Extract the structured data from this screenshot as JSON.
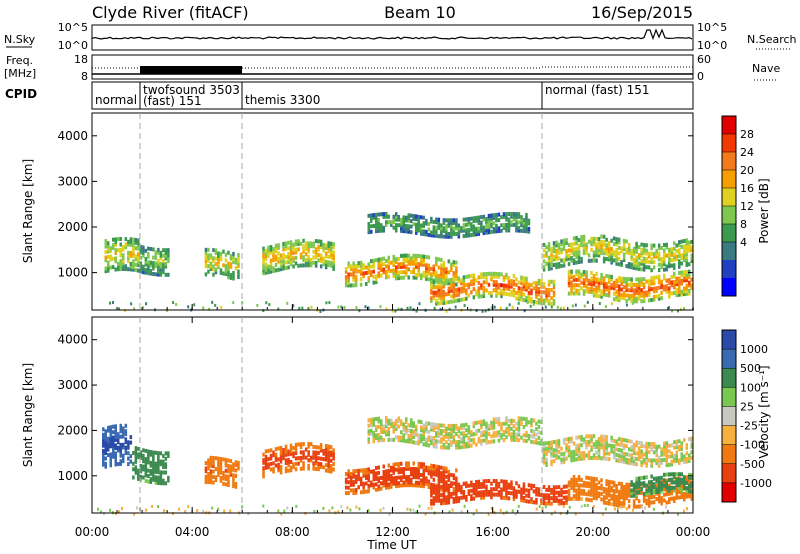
{
  "header": {
    "station": "Clyde River (fitACF)",
    "beam": "Beam 10",
    "date": "16/Sep/2015"
  },
  "noise_panel": {
    "left_label": "N.Sky",
    "left_ticks": [
      "10^5",
      "10^0"
    ],
    "right_label": "N.Search",
    "right_ticks": [
      "10^5",
      "10^0"
    ]
  },
  "freq_panel": {
    "left_label_line1": "Freq.",
    "left_label_line2": "[MHz]",
    "left_ticks": [
      "18",
      "8"
    ],
    "right_label": "Nave",
    "right_ticks": [
      "60",
      "0"
    ]
  },
  "cpid_panel": {
    "label": "CPID",
    "segments": [
      {
        "start": 0.0,
        "label": "normal"
      },
      {
        "start": 2.0,
        "label": "twofsound  3503"
      },
      {
        "start": 2.0,
        "label": "(fast)  151"
      },
      {
        "start": 6.0,
        "label": "themis  3300"
      },
      {
        "start": 18.0,
        "label": "normal (fast)  151"
      }
    ]
  },
  "time_axis": {
    "xlabel": "Time UT",
    "ticks": [
      "00:00",
      "04:00",
      "08:00",
      "12:00",
      "16:00",
      "20:00",
      "00:00"
    ]
  },
  "power_colorbar": {
    "label": "Power [dB]",
    "ticks": [
      "28",
      "24",
      "20",
      "16",
      "12",
      "8",
      "4"
    ],
    "colors": [
      "#e00000",
      "#f23a00",
      "#f57a1a",
      "#f5a000",
      "#e0d020",
      "#7ec850",
      "#3c9a50",
      "#3a7a80",
      "#2040c0",
      "#0000ff"
    ]
  },
  "velocity_colorbar": {
    "label": "Velocity [m s⁻¹]",
    "ticks": [
      "1000",
      "500",
      "100",
      "25",
      "-25",
      "-100",
      "-500",
      "-1000"
    ],
    "colors": [
      "#2a4aa8",
      "#3a6ab0",
      "#3c8a50",
      "#7ac850",
      "#c8c8c0",
      "#f5b040",
      "#f07a10",
      "#e84010",
      "#e00000"
    ]
  },
  "chart_data": [
    {
      "type": "heatmap",
      "title": "Power",
      "xlabel": "Time UT",
      "ylabel": "Slant Range [km]",
      "x_range_hours": [
        0,
        24
      ],
      "ylim": [
        180,
        4500
      ],
      "yticks": [
        1000,
        2000,
        3000,
        4000
      ],
      "colorbar_label": "Power [dB]",
      "colorbar_range": [
        0,
        30
      ],
      "bands": [
        {
          "t0": 0.5,
          "t1": 1.9,
          "r_center": 1350,
          "half_width": 350,
          "value": 18
        },
        {
          "t0": 1.9,
          "t1": 3.1,
          "r_center": 1400,
          "half_width": 300,
          "value": 14
        },
        {
          "t0": 4.5,
          "t1": 5.8,
          "r_center": 1200,
          "half_width": 300,
          "value": 18
        },
        {
          "t0": 6.8,
          "t1": 9.6,
          "r_center": 1400,
          "half_width": 300,
          "value": 20
        },
        {
          "t0": 10.1,
          "t1": 14.5,
          "r_center": 1100,
          "half_width": 250,
          "value": 24
        },
        {
          "t0": 11.0,
          "t1": 17.5,
          "r_center": 2100,
          "half_width": 200,
          "value": 12
        },
        {
          "t0": 13.5,
          "t1": 18.5,
          "r_center": 700,
          "half_width": 250,
          "value": 26
        },
        {
          "t0": 18.0,
          "t1": 24.0,
          "r_center": 1500,
          "half_width": 300,
          "value": 18
        },
        {
          "t0": 19.0,
          "t1": 24.0,
          "r_center": 750,
          "half_width": 250,
          "value": 26
        }
      ]
    },
    {
      "type": "heatmap",
      "title": "Velocity",
      "xlabel": "Time UT",
      "ylabel": "Slant Range [km]",
      "x_range_hours": [
        0,
        24
      ],
      "ylim": [
        180,
        4500
      ],
      "yticks": [
        1000,
        2000,
        3000,
        4000
      ],
      "colorbar_label": "Velocity [m s⁻¹]",
      "colorbar_range": [
        -1000,
        1000
      ],
      "bands": [
        {
          "t0": 0.4,
          "t1": 1.6,
          "r_center": 1600,
          "half_width": 450,
          "value": 800
        },
        {
          "t0": 1.6,
          "t1": 3.1,
          "r_center": 1350,
          "half_width": 350,
          "value": 200
        },
        {
          "t0": 4.5,
          "t1": 5.8,
          "r_center": 1100,
          "half_width": 300,
          "value": -300
        },
        {
          "t0": 6.8,
          "t1": 9.6,
          "r_center": 1400,
          "half_width": 300,
          "value": -400
        },
        {
          "t0": 10.1,
          "t1": 14.5,
          "r_center": 1000,
          "half_width": 250,
          "value": -500
        },
        {
          "t0": 11.0,
          "t1": 18.0,
          "r_center": 2000,
          "half_width": 250,
          "value": 0
        },
        {
          "t0": 13.5,
          "t1": 19.0,
          "r_center": 700,
          "half_width": 200,
          "value": -600
        },
        {
          "t0": 18.0,
          "t1": 24.0,
          "r_center": 1600,
          "half_width": 250,
          "value": 0
        },
        {
          "t0": 19.0,
          "t1": 24.0,
          "r_center": 700,
          "half_width": 250,
          "value": -200
        },
        {
          "t0": 21.5,
          "t1": 24.0,
          "r_center": 850,
          "half_width": 200,
          "value": 150
        }
      ]
    }
  ]
}
